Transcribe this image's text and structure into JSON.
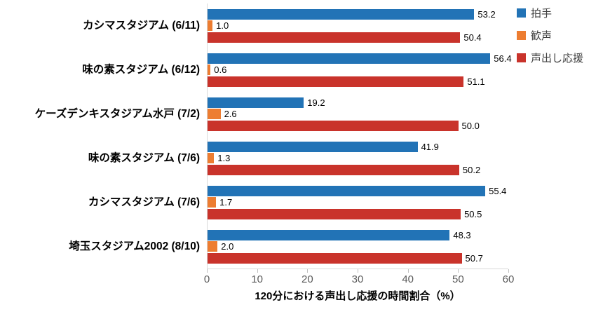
{
  "chart_data": {
    "type": "bar",
    "orientation": "horizontal",
    "title": "",
    "xlabel": "120分における声出し応援の時間割合（%）",
    "ylabel": "",
    "xlim": [
      0,
      60
    ],
    "xticks": [
      0,
      10,
      20,
      30,
      40,
      50,
      60
    ],
    "grid": false,
    "value_labels": true,
    "legend_position": "right-top",
    "categories": [
      "カシマスタジアム (6/11)",
      "味の素スタジアム (6/12)",
      "ケーズデンキスタジアム水戸 (7/2)",
      "味の素スタジアム (7/6)",
      "カシマスタジアム (7/6)",
      "埼玉スタジアム2002 (8/10)"
    ],
    "series": [
      {
        "name": "拍手",
        "color": "#2273b6",
        "values": [
          53.2,
          56.4,
          19.2,
          41.9,
          55.4,
          48.3
        ]
      },
      {
        "name": "歓声",
        "color": "#ed7d31",
        "values": [
          1.0,
          0.6,
          2.6,
          1.3,
          1.7,
          2.0
        ]
      },
      {
        "name": "声出し応援",
        "color": "#c9332b",
        "values": [
          50.4,
          51.1,
          50.0,
          50.2,
          50.5,
          50.7
        ]
      }
    ],
    "colors": {
      "axis_line": "#d9d9d9",
      "tick": "#bfbfbf",
      "tick_text": "#595959"
    }
  }
}
